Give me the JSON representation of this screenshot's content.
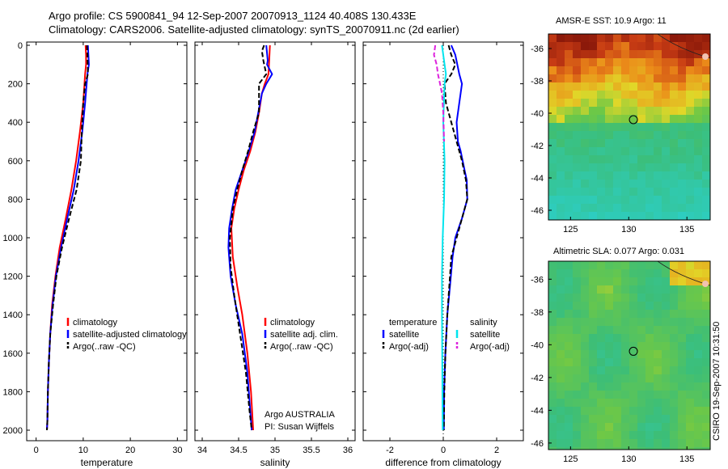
{
  "header": {
    "title_line1": "Argo profile: CS 5900841_94 12-Sep-2007 20070913_1124 40.408S 130.433E",
    "title_line2": "Climatology: CARS2006. Satellite-adjusted climatology: synTS_20070911.nc (2d earlier)"
  },
  "chart_data": [
    {
      "type": "line",
      "name": "temperature-profile",
      "xlabel": "temperature",
      "ylabel": "",
      "xlim": [
        -2,
        32
      ],
      "ylim": [
        2050,
        0
      ],
      "xticks": [
        0,
        10,
        20,
        30
      ],
      "xtick_labels": [
        "0",
        "10",
        "20",
        "30"
      ],
      "yticks": [
        0,
        200,
        400,
        600,
        800,
        1000,
        1200,
        1400,
        1600,
        1800,
        2000
      ],
      "ytick_labels": [
        "0",
        "200",
        "400",
        "600",
        "800",
        "1000",
        "1200",
        "1400",
        "1600",
        "1800",
        "2000"
      ],
      "legend": [
        "climatology",
        "satellite-adjusted climatology",
        "Argo(..raw -QC)"
      ],
      "legend_position": "lower-right",
      "series": [
        {
          "name": "climatology",
          "color": "#ff0000",
          "dash": "solid",
          "points": [
            [
              10.5,
              0
            ],
            [
              10.6,
              50
            ],
            [
              10.6,
              100
            ],
            [
              10.4,
              150
            ],
            [
              10,
              300
            ],
            [
              9.3,
              450
            ],
            [
              8.5,
              600
            ],
            [
              7.5,
              750
            ],
            [
              6.3,
              900
            ],
            [
              5,
              1050
            ],
            [
              4.1,
              1200
            ],
            [
              3.4,
              1350
            ],
            [
              3.0,
              1500
            ],
            [
              2.7,
              1650
            ],
            [
              2.5,
              1800
            ],
            [
              2.4,
              1950
            ],
            [
              2.3,
              2000
            ]
          ]
        },
        {
          "name": "satellite-adjusted climatology",
          "color": "#0000ff",
          "dash": "solid",
          "points": [
            [
              11,
              0
            ],
            [
              11.1,
              50
            ],
            [
              11.2,
              100
            ],
            [
              10.9,
              150
            ],
            [
              10.4,
              300
            ],
            [
              9.8,
              450
            ],
            [
              9.0,
              600
            ],
            [
              8.0,
              750
            ],
            [
              6.6,
              900
            ],
            [
              5.3,
              1050
            ],
            [
              4.2,
              1200
            ],
            [
              3.5,
              1350
            ],
            [
              3.0,
              1500
            ],
            [
              2.7,
              1650
            ],
            [
              2.5,
              1800
            ],
            [
              2.4,
              1950
            ],
            [
              2.3,
              2000
            ]
          ]
        },
        {
          "name": "Argo(..raw -QC)",
          "color": "#000000",
          "dash": "6,3",
          "points": [
            [
              10.8,
              0
            ],
            [
              10.9,
              50
            ],
            [
              11,
              150
            ],
            [
              10.4,
              200
            ],
            [
              10,
              300
            ],
            [
              9.7,
              450
            ],
            [
              9.5,
              600
            ],
            [
              8.6,
              750
            ],
            [
              7.0,
              900
            ],
            [
              5.5,
              1050
            ],
            [
              4.3,
              1200
            ],
            [
              3.6,
              1350
            ],
            [
              3.0,
              1500
            ],
            [
              2.7,
              1650
            ],
            [
              2.5,
              1800
            ],
            [
              2.4,
              1950
            ],
            [
              2.3,
              2000
            ]
          ]
        }
      ]
    },
    {
      "type": "line",
      "name": "salinity-profile",
      "xlabel": "salinity",
      "xlim": [
        33.9,
        36.1
      ],
      "ylim": [
        2050,
        0
      ],
      "xticks": [
        34,
        34.5,
        35,
        35.5,
        36
      ],
      "xtick_labels": [
        "34",
        "34.5",
        "35",
        "35.5",
        "36"
      ],
      "legend": [
        "climatology",
        "satellite adj. clim.",
        "Argo(..raw -QC)"
      ],
      "legend_position": "lower-right",
      "annotation_lines": [
        "Argo AUSTRALIA",
        "PI: Susan Wijffels"
      ],
      "series": [
        {
          "name": "climatology",
          "color": "#ff0000",
          "dash": "solid",
          "points": [
            [
              34.93,
              0
            ],
            [
              34.92,
              80
            ],
            [
              34.91,
              150
            ],
            [
              34.86,
              200
            ],
            [
              34.82,
              250
            ],
            [
              34.78,
              350
            ],
            [
              34.73,
              450
            ],
            [
              34.66,
              550
            ],
            [
              34.57,
              650
            ],
            [
              34.5,
              750
            ],
            [
              34.44,
              850
            ],
            [
              34.4,
              950
            ],
            [
              34.42,
              1100
            ],
            [
              34.48,
              1250
            ],
            [
              34.55,
              1400
            ],
            [
              34.62,
              1600
            ],
            [
              34.67,
              1800
            ],
            [
              34.7,
              2000
            ]
          ]
        },
        {
          "name": "satellite adj. clim.",
          "color": "#0000ff",
          "dash": "solid",
          "points": [
            [
              34.88,
              0
            ],
            [
              34.9,
              80
            ],
            [
              34.89,
              100
            ],
            [
              34.96,
              150
            ],
            [
              34.88,
              200
            ],
            [
              34.82,
              250
            ],
            [
              34.77,
              350
            ],
            [
              34.72,
              450
            ],
            [
              34.64,
              550
            ],
            [
              34.55,
              650
            ],
            [
              34.46,
              750
            ],
            [
              34.41,
              850
            ],
            [
              34.37,
              950
            ],
            [
              34.36,
              1050
            ],
            [
              34.39,
              1200
            ],
            [
              34.46,
              1350
            ],
            [
              34.55,
              1500
            ],
            [
              34.62,
              1700
            ],
            [
              34.66,
              1900
            ],
            [
              34.68,
              2000
            ]
          ]
        },
        {
          "name": "Argo(..raw -QC)",
          "color": "#000000",
          "dash": "6,3",
          "points": [
            [
              34.85,
              0
            ],
            [
              34.82,
              30
            ],
            [
              34.84,
              80
            ],
            [
              34.88,
              150
            ],
            [
              34.78,
              200
            ],
            [
              34.78,
              350
            ],
            [
              34.74,
              400
            ],
            [
              34.7,
              450
            ],
            [
              34.63,
              550
            ],
            [
              34.55,
              650
            ],
            [
              34.48,
              750
            ],
            [
              34.42,
              850
            ],
            [
              34.38,
              1000
            ],
            [
              34.39,
              1150
            ],
            [
              34.44,
              1300
            ],
            [
              34.52,
              1500
            ],
            [
              34.6,
              1700
            ],
            [
              34.65,
              1900
            ],
            [
              34.68,
              2000
            ]
          ]
        }
      ]
    },
    {
      "type": "line",
      "name": "difference-profile",
      "xlabel": "difference from climatology",
      "xlim": [
        -3,
        3
      ],
      "ylim": [
        2050,
        0
      ],
      "xticks": [
        -2,
        0,
        2
      ],
      "xtick_labels": [
        "-2",
        "0",
        "2"
      ],
      "legend_groups": [
        {
          "title": "temperature",
          "entries": [
            "satellite",
            "Argo(-adj)"
          ]
        },
        {
          "title": "salinity",
          "entries": [
            "satellite",
            "Argo(-adj)"
          ]
        }
      ],
      "legend_position": "lower-right",
      "series": [
        {
          "name": "temperature satellite",
          "color": "#0000ff",
          "dash": "solid",
          "points": [
            [
              0.3,
              0
            ],
            [
              0.45,
              50
            ],
            [
              0.6,
              150
            ],
            [
              0.7,
              200
            ],
            [
              0.6,
              300
            ],
            [
              0.5,
              400
            ],
            [
              0.55,
              500
            ],
            [
              0.65,
              550
            ],
            [
              0.8,
              650
            ],
            [
              0.88,
              700
            ],
            [
              0.9,
              800
            ],
            [
              0.7,
              900
            ],
            [
              0.45,
              1000
            ],
            [
              0.35,
              1100
            ],
            [
              0.25,
              1250
            ],
            [
              0.15,
              1400
            ],
            [
              0.08,
              1600
            ],
            [
              0.03,
              1800
            ],
            [
              0.02,
              2000
            ]
          ]
        },
        {
          "name": "temperature Argo(-adj)",
          "color": "#000000",
          "dash": "6,3",
          "points": [
            [
              0.2,
              0
            ],
            [
              0.3,
              50
            ],
            [
              0.45,
              100
            ],
            [
              0.3,
              150
            ],
            [
              0.05,
              200
            ],
            [
              0.1,
              300
            ],
            [
              0.3,
              400
            ],
            [
              0.5,
              500
            ],
            [
              0.7,
              600
            ],
            [
              0.85,
              700
            ],
            [
              0.9,
              800
            ],
            [
              0.7,
              900
            ],
            [
              0.5,
              1000
            ],
            [
              0.3,
              1100
            ],
            [
              0.25,
              1200
            ],
            [
              0.15,
              1400
            ],
            [
              0.08,
              1600
            ],
            [
              0.04,
              1800
            ],
            [
              0.02,
              2000
            ]
          ]
        },
        {
          "name": "salinity satellite",
          "color": "#00e5ee",
          "dash": "solid",
          "points": [
            [
              -0.05,
              0
            ],
            [
              0,
              50
            ],
            [
              0.05,
              100
            ],
            [
              0.1,
              150
            ],
            [
              0.05,
              200
            ],
            [
              0,
              400
            ],
            [
              0.05,
              600
            ],
            [
              0.03,
              800
            ],
            [
              -0.02,
              1000
            ],
            [
              -0.05,
              1200
            ],
            [
              -0.05,
              1400
            ],
            [
              -0.04,
              1600
            ],
            [
              -0.03,
              1800
            ],
            [
              -0.02,
              2000
            ]
          ]
        },
        {
          "name": "salinity Argo(-adj)",
          "color": "#dd22dd",
          "dash": "6,3",
          "points": [
            [
              -0.3,
              0
            ],
            [
              -0.35,
              50
            ],
            [
              -0.25,
              100
            ],
            [
              -0.2,
              150
            ],
            [
              -0.12,
              200
            ],
            [
              -0.05,
              250
            ],
            [
              0,
              350
            ],
            [
              0.03,
              500
            ]
          ]
        }
      ]
    }
  ],
  "maps": [
    {
      "title": "AMSR-E SST: 10.9 Argo: 11",
      "xticks": [
        "125",
        "130",
        "135"
      ],
      "yticks": [
        "-36",
        "-38",
        "-40",
        "-42",
        "-44",
        "-46"
      ],
      "marker": {
        "lon": 130.4,
        "lat": -40.4
      }
    },
    {
      "title": "Altimetric SLA: 0.077 Argo: 0.031",
      "xticks": [
        "125",
        "130",
        "135"
      ],
      "yticks": [
        "-36",
        "-38",
        "-40",
        "-42",
        "-44",
        "-46"
      ],
      "marker": {
        "lon": 130.4,
        "lat": -40.4
      }
    }
  ],
  "footer": {
    "stamp": "CSIRO 19-Sep-2007 10:31:50"
  }
}
